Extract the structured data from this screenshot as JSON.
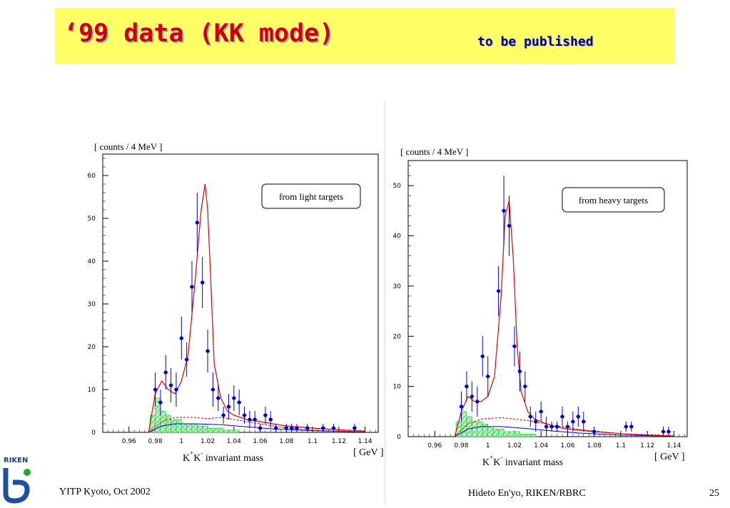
{
  "header": {
    "title": "‘99 data (KK mode)",
    "subtitle": "to be published"
  },
  "footer": {
    "left": "YITP Kyoto, Oct 2002",
    "center": "Hideto En'yo, RIKEN/RBRC",
    "page": "25"
  },
  "logo": {
    "text": "RIKEN"
  },
  "colors": {
    "title": "#cc0000",
    "subtitle": "#000099",
    "title_bg": "#ffff66",
    "data_points": "#0000cc",
    "fit_curve": "#dd0000",
    "background_hist": "#00cc33",
    "background_curve": "#0000cc"
  },
  "chart_data": [
    {
      "type": "scatter",
      "panel": "left",
      "ylabel": "[ counts / 4 MeV ]",
      "xlabel_main": "K",
      "xlabel_second": "K",
      "xlabel_sup_plus": "+",
      "xlabel_sup_minus": "-",
      "xlabel_rest": "invariant mass",
      "xunit": "[ GeV ]",
      "annotation": "from  light targets",
      "xlim": [
        0.94,
        1.15
      ],
      "ylim": [
        0,
        65
      ],
      "x_ticks": [
        0.96,
        0.98,
        1.0,
        1.02,
        1.04,
        1.06,
        1.08,
        1.1,
        1.12,
        1.14
      ],
      "x_tick_labels": [
        "0.96",
        "0.98",
        "1",
        "1.02",
        "1.04",
        "1.06",
        "1.08",
        "1.1",
        "1.12",
        "1.14"
      ],
      "y_ticks": [
        0,
        10,
        20,
        30,
        40,
        50,
        60
      ],
      "y_tick_labels": [
        "0",
        "10",
        "20",
        "30",
        "40",
        "50",
        "60"
      ],
      "series": [
        {
          "kind": "data",
          "points": [
            {
              "x": 0.98,
              "y": 10,
              "err": 4
            },
            {
              "x": 0.984,
              "y": 7,
              "err": 3
            },
            {
              "x": 0.988,
              "y": 14,
              "err": 4
            },
            {
              "x": 0.992,
              "y": 11,
              "err": 4
            },
            {
              "x": 0.996,
              "y": 10,
              "err": 4
            },
            {
              "x": 1.0,
              "y": 22,
              "err": 5
            },
            {
              "x": 1.004,
              "y": 17,
              "err": 4
            },
            {
              "x": 1.008,
              "y": 34,
              "err": 6
            },
            {
              "x": 1.012,
              "y": 49,
              "err": 7
            },
            {
              "x": 1.016,
              "y": 35,
              "err": 6
            },
            {
              "x": 1.02,
              "y": 19,
              "err": 5
            },
            {
              "x": 1.024,
              "y": 10,
              "err": 4
            },
            {
              "x": 1.028,
              "y": 8,
              "err": 3
            },
            {
              "x": 1.032,
              "y": 4,
              "err": 2
            },
            {
              "x": 1.036,
              "y": 6,
              "err": 3
            },
            {
              "x": 1.04,
              "y": 8,
              "err": 3
            },
            {
              "x": 1.044,
              "y": 7,
              "err": 3
            },
            {
              "x": 1.048,
              "y": 4,
              "err": 2
            },
            {
              "x": 1.052,
              "y": 3,
              "err": 2
            },
            {
              "x": 1.056,
              "y": 3,
              "err": 2
            },
            {
              "x": 1.06,
              "y": 1,
              "err": 1
            },
            {
              "x": 1.064,
              "y": 4,
              "err": 2
            },
            {
              "x": 1.068,
              "y": 3,
              "err": 2
            },
            {
              "x": 1.072,
              "y": 1,
              "err": 1
            },
            {
              "x": 1.08,
              "y": 1,
              "err": 1
            },
            {
              "x": 1.084,
              "y": 1,
              "err": 1
            },
            {
              "x": 1.088,
              "y": 1,
              "err": 1
            },
            {
              "x": 1.096,
              "y": 1,
              "err": 1
            },
            {
              "x": 1.108,
              "y": 1,
              "err": 1
            },
            {
              "x": 1.116,
              "y": 1,
              "err": 1
            },
            {
              "x": 1.132,
              "y": 1,
              "err": 1
            }
          ]
        }
      ],
      "fit_curve": {
        "x": [
          0.975,
          0.98,
          0.985,
          0.99,
          0.995,
          1.0,
          1.005,
          1.01,
          1.015,
          1.018,
          1.02,
          1.022,
          1.025,
          1.03,
          1.035,
          1.04,
          1.05,
          1.06,
          1.08,
          1.1,
          1.12,
          1.14
        ],
        "y": [
          0,
          9,
          12,
          10,
          9,
          12,
          18,
          34,
          52,
          58,
          52,
          38,
          16,
          8,
          5,
          4,
          3,
          2.5,
          1.5,
          1,
          0.6,
          0.3
        ]
      },
      "background_curve": {
        "x": [
          0.975,
          0.985,
          0.995,
          1.01,
          1.03,
          1.05,
          1.07,
          1.1,
          1.14
        ],
        "y": [
          0,
          1.5,
          2,
          2,
          1.8,
          1.3,
          0.8,
          0.4,
          0.1
        ]
      },
      "dashed_curve": {
        "x": [
          0.975,
          0.985,
          0.995,
          1.01,
          1.02,
          1.03,
          1.04,
          1.06,
          1.08,
          1.1,
          1.14
        ],
        "y": [
          0,
          2.5,
          3.5,
          3.5,
          3.2,
          3.5,
          3.0,
          2.0,
          1.0,
          0.5,
          0.1
        ]
      },
      "background_hist": {
        "bin_width": 0.004,
        "bins": [
          {
            "x": 0.976,
            "y": 4
          },
          {
            "x": 0.98,
            "y": 8
          },
          {
            "x": 0.984,
            "y": 5
          },
          {
            "x": 0.988,
            "y": 4
          },
          {
            "x": 0.992,
            "y": 3
          },
          {
            "x": 0.996,
            "y": 3
          },
          {
            "x": 1.0,
            "y": 2
          },
          {
            "x": 1.004,
            "y": 2
          },
          {
            "x": 1.008,
            "y": 2
          },
          {
            "x": 1.012,
            "y": 1.5
          },
          {
            "x": 1.016,
            "y": 1.5
          },
          {
            "x": 1.02,
            "y": 1
          },
          {
            "x": 1.024,
            "y": 1
          },
          {
            "x": 1.028,
            "y": 1
          },
          {
            "x": 1.032,
            "y": 0.5
          },
          {
            "x": 1.036,
            "y": 0.5
          },
          {
            "x": 1.04,
            "y": 0.5
          }
        ]
      }
    },
    {
      "type": "scatter",
      "panel": "right",
      "ylabel": "[ counts / 4 MeV ]",
      "xlabel_main": "K",
      "xlabel_second": "K",
      "xlabel_sup_plus": "+",
      "xlabel_sup_minus": "-",
      "xlabel_rest": "invariant mass",
      "xunit": "[ GeV ]",
      "annotation": "from  heavy targets",
      "xlim": [
        0.94,
        1.15
      ],
      "ylim": [
        0,
        55
      ],
      "x_ticks": [
        0.96,
        0.98,
        1.0,
        1.02,
        1.04,
        1.06,
        1.08,
        1.1,
        1.12,
        1.14
      ],
      "x_tick_labels": [
        "0.96",
        "0.98",
        "1",
        "1.02",
        "1.04",
        "1.06",
        "1.08",
        "1.1",
        "1.12",
        "1.14"
      ],
      "y_ticks": [
        0,
        10,
        20,
        30,
        40,
        50
      ],
      "y_tick_labels": [
        "0",
        "10",
        "20",
        "30",
        "40",
        "50"
      ],
      "series": [
        {
          "kind": "data",
          "points": [
            {
              "x": 0.98,
              "y": 6,
              "err": 3
            },
            {
              "x": 0.984,
              "y": 10,
              "err": 3
            },
            {
              "x": 0.988,
              "y": 8,
              "err": 3
            },
            {
              "x": 0.992,
              "y": 7,
              "err": 3
            },
            {
              "x": 0.996,
              "y": 16,
              "err": 4
            },
            {
              "x": 1.0,
              "y": 12,
              "err": 4
            },
            {
              "x": 1.008,
              "y": 29,
              "err": 5
            },
            {
              "x": 1.012,
              "y": 45,
              "err": 7
            },
            {
              "x": 1.016,
              "y": 42,
              "err": 6
            },
            {
              "x": 1.02,
              "y": 18,
              "err": 4
            },
            {
              "x": 1.024,
              "y": 13,
              "err": 4
            },
            {
              "x": 1.028,
              "y": 10,
              "err": 3
            },
            {
              "x": 1.032,
              "y": 4,
              "err": 2
            },
            {
              "x": 1.036,
              "y": 3,
              "err": 2
            },
            {
              "x": 1.04,
              "y": 5,
              "err": 2
            },
            {
              "x": 1.044,
              "y": 2,
              "err": 2
            },
            {
              "x": 1.048,
              "y": 2,
              "err": 1
            },
            {
              "x": 1.052,
              "y": 2,
              "err": 1
            },
            {
              "x": 1.056,
              "y": 4,
              "err": 2
            },
            {
              "x": 1.06,
              "y": 2,
              "err": 1
            },
            {
              "x": 1.064,
              "y": 3,
              "err": 2
            },
            {
              "x": 1.068,
              "y": 4,
              "err": 2
            },
            {
              "x": 1.072,
              "y": 3,
              "err": 2
            },
            {
              "x": 1.08,
              "y": 1,
              "err": 1
            },
            {
              "x": 1.104,
              "y": 2,
              "err": 1
            },
            {
              "x": 1.108,
              "y": 2,
              "err": 1
            },
            {
              "x": 1.132,
              "y": 1,
              "err": 1
            },
            {
              "x": 1.136,
              "y": 1,
              "err": 1
            }
          ]
        }
      ],
      "fit_curve": {
        "x": [
          0.975,
          0.98,
          0.985,
          0.99,
          0.995,
          1.0,
          1.005,
          1.01,
          1.013,
          1.016,
          1.019,
          1.022,
          1.025,
          1.03,
          1.035,
          1.04,
          1.05,
          1.06,
          1.08,
          1.1,
          1.12,
          1.14
        ],
        "y": [
          0,
          5,
          8,
          7,
          7,
          8,
          12,
          28,
          44,
          47,
          36,
          18,
          9,
          5,
          3.5,
          3,
          2,
          1.5,
          1,
          0.6,
          0.3,
          0.1
        ]
      },
      "background_curve": {
        "x": [
          0.975,
          0.985,
          0.995,
          1.01,
          1.03,
          1.05,
          1.07,
          1.1,
          1.14
        ],
        "y": [
          0,
          1.5,
          2,
          2,
          1.6,
          1.1,
          0.7,
          0.3,
          0.1
        ]
      },
      "dashed_curve": {
        "x": [
          0.975,
          0.985,
          0.995,
          1.01,
          1.03,
          1.05,
          1.07,
          1.1,
          1.14
        ],
        "y": [
          0,
          2.5,
          3.5,
          3.8,
          3.2,
          2.2,
          1.4,
          0.6,
          0.2
        ]
      },
      "background_hist": {
        "bin_width": 0.004,
        "bins": [
          {
            "x": 0.976,
            "y": 3
          },
          {
            "x": 0.98,
            "y": 5
          },
          {
            "x": 0.984,
            "y": 4
          },
          {
            "x": 0.988,
            "y": 3
          },
          {
            "x": 0.992,
            "y": 3
          },
          {
            "x": 0.996,
            "y": 2.5
          },
          {
            "x": 1.0,
            "y": 2
          },
          {
            "x": 1.004,
            "y": 1.5
          },
          {
            "x": 1.008,
            "y": 1.5
          },
          {
            "x": 1.012,
            "y": 1
          },
          {
            "x": 1.016,
            "y": 1
          },
          {
            "x": 1.02,
            "y": 1
          },
          {
            "x": 1.024,
            "y": 0.5
          },
          {
            "x": 1.028,
            "y": 0.5
          },
          {
            "x": 1.032,
            "y": 0.5
          }
        ]
      }
    }
  ]
}
